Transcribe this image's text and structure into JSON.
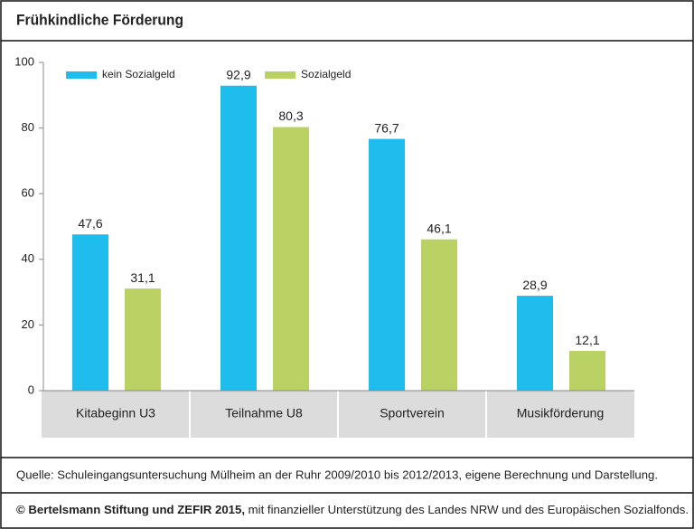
{
  "chart_data": {
    "type": "bar",
    "title": "Frühkindliche Förderung",
    "categories": [
      "Kitabeginn U3",
      "Teilnahme U8",
      "Sportverein",
      "Musikförderung"
    ],
    "series": [
      {
        "name": "kein Sozialgeld",
        "color": "#1fbdee",
        "values": [
          47.6,
          92.9,
          76.7,
          28.9
        ],
        "value_labels": [
          "47,6",
          "92,9",
          "76,7",
          "28,9"
        ]
      },
      {
        "name": "Sozialgeld",
        "color": "#b9d263",
        "values": [
          31.1,
          80.3,
          46.1,
          12.1
        ],
        "value_labels": [
          "31,1",
          "80,3",
          "46,1",
          "12,1"
        ]
      }
    ],
    "ylim": [
      0,
      100
    ],
    "yticks": [
      0,
      20,
      40,
      60,
      80,
      100
    ],
    "grid": false,
    "legend": "top-left"
  },
  "footer": {
    "source": "Quelle: Schuleingangsuntersuchung Mülheim an der Ruhr 2009/2010 bis 2012/2013, eigene Berechnung und Darstellung.",
    "copyright_bold": "© Bertelsmann Stiftung und ZEFIR 2015,",
    "copyright_rest": "mit finanzieller Unterstützung des Landes NRW und des Europäischen Sozialfonds."
  }
}
